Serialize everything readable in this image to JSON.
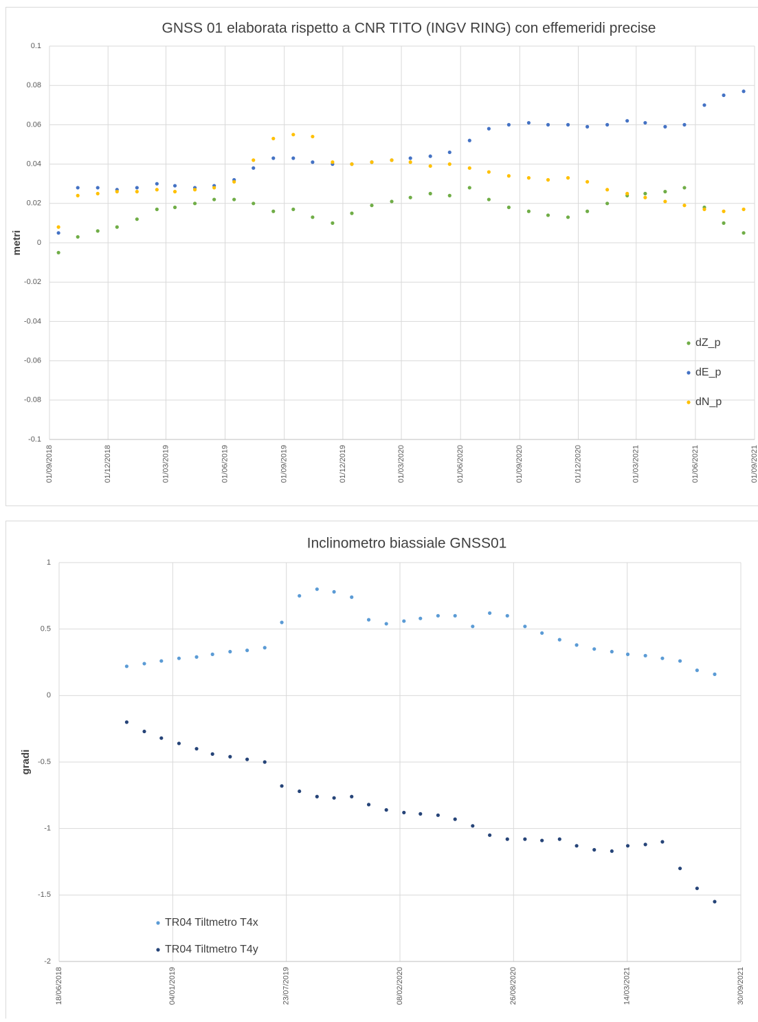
{
  "chart_data": [
    {
      "type": "scatter",
      "title": "GNSS 01 elaborata rispetto a CNR TITO (INGV RING) con effemeridi precise",
      "y_label": "metri",
      "x": [
        "2018-09-15",
        "2018-10-15",
        "2018-11-15",
        "2018-12-15",
        "2019-01-15",
        "2019-02-15",
        "2019-03-15",
        "2019-04-15",
        "2019-05-15",
        "2019-06-15",
        "2019-07-15",
        "2019-08-15",
        "2019-09-15",
        "2019-10-15",
        "2019-11-15",
        "2019-12-15",
        "2020-01-15",
        "2020-02-15",
        "2020-03-15",
        "2020-04-15",
        "2020-05-15",
        "2020-06-15",
        "2020-07-15",
        "2020-08-15",
        "2020-09-15",
        "2020-10-15",
        "2020-11-15",
        "2020-12-15",
        "2021-01-15",
        "2021-02-15",
        "2021-03-15",
        "2021-04-15",
        "2021-05-15",
        "2021-06-15",
        "2021-07-15",
        "2021-08-15"
      ],
      "series": [
        {
          "name": "dZ_p",
          "color": "#70ad47",
          "values": [
            -0.005,
            0.003,
            0.006,
            0.008,
            0.012,
            0.017,
            0.018,
            0.02,
            0.022,
            0.022,
            0.02,
            0.016,
            0.017,
            0.013,
            0.01,
            0.015,
            0.019,
            0.021,
            0.023,
            0.025,
            0.024,
            0.028,
            0.022,
            0.018,
            0.016,
            0.014,
            0.013,
            0.016,
            0.02,
            0.024,
            0.025,
            0.026,
            0.028,
            0.018,
            0.01,
            0.005
          ]
        },
        {
          "name": "dE_p",
          "color": "#4472c4",
          "values": [
            0.005,
            0.028,
            0.028,
            0.027,
            0.028,
            0.03,
            0.029,
            0.028,
            0.029,
            0.032,
            0.038,
            0.043,
            0.043,
            0.041,
            0.04,
            0.04,
            0.041,
            0.042,
            0.043,
            0.044,
            0.046,
            0.052,
            0.058,
            0.06,
            0.061,
            0.06,
            0.06,
            0.059,
            0.06,
            0.062,
            0.061,
            0.059,
            0.06,
            0.07,
            0.075,
            0.077
          ]
        },
        {
          "name": "dN_p",
          "color": "#ffc000",
          "values": [
            0.008,
            0.024,
            0.025,
            0.026,
            0.026,
            0.027,
            0.026,
            0.027,
            0.028,
            0.031,
            0.042,
            0.053,
            0.055,
            0.054,
            0.041,
            0.04,
            0.041,
            0.042,
            0.041,
            0.039,
            0.04,
            0.038,
            0.036,
            0.034,
            0.033,
            0.032,
            0.033,
            0.031,
            0.027,
            0.025,
            0.023,
            0.021,
            0.019,
            0.017,
            0.016,
            0.017
          ]
        }
      ],
      "xlim": [
        "2018-09-01",
        "2021-09-01"
      ],
      "xticks": [
        {
          "value": "2018-09-01",
          "label": "01/09/2018"
        },
        {
          "value": "2018-12-01",
          "label": "01/12/2018"
        },
        {
          "value": "2019-03-01",
          "label": "01/03/2019"
        },
        {
          "value": "2019-06-01",
          "label": "01/06/2019"
        },
        {
          "value": "2019-09-01",
          "label": "01/09/2019"
        },
        {
          "value": "2019-12-01",
          "label": "01/12/2019"
        },
        {
          "value": "2020-03-01",
          "label": "01/03/2020"
        },
        {
          "value": "2020-06-01",
          "label": "01/06/2020"
        },
        {
          "value": "2020-09-01",
          "label": "01/09/2020"
        },
        {
          "value": "2020-12-01",
          "label": "01/12/2020"
        },
        {
          "value": "2021-03-01",
          "label": "01/03/2021"
        },
        {
          "value": "2021-06-01",
          "label": "01/06/2021"
        },
        {
          "value": "2021-09-01",
          "label": "01/09/2021"
        }
      ],
      "ylim": [
        -0.1,
        0.1
      ],
      "yticks": [
        -0.1,
        -0.08,
        -0.06,
        -0.04,
        -0.02,
        0,
        0.02,
        0.04,
        0.06,
        0.08,
        0.1
      ],
      "grid": true,
      "legend": "right"
    },
    {
      "type": "scatter",
      "title": "Inclinometro biassiale GNSS01",
      "y_label": "gradi",
      "x": [
        "2018-10-15",
        "2018-11-15",
        "2018-12-15",
        "2019-01-15",
        "2019-02-15",
        "2019-03-15",
        "2019-04-15",
        "2019-05-15",
        "2019-06-15",
        "2019-07-15",
        "2019-08-15",
        "2019-09-15",
        "2019-10-15",
        "2019-11-15",
        "2019-12-15",
        "2020-01-15",
        "2020-02-15",
        "2020-03-15",
        "2020-04-15",
        "2020-05-15",
        "2020-06-15",
        "2020-07-15",
        "2020-08-15",
        "2020-09-15",
        "2020-10-15",
        "2020-11-15",
        "2020-12-15",
        "2021-01-15",
        "2021-02-15",
        "2021-03-15",
        "2021-04-15",
        "2021-05-15",
        "2021-06-15",
        "2021-07-15",
        "2021-08-15"
      ],
      "series": [
        {
          "name": "TR04 Tiltmetro T4x",
          "color": "#5b9bd5",
          "values": [
            0.22,
            0.24,
            0.26,
            0.28,
            0.29,
            0.31,
            0.33,
            0.34,
            0.36,
            0.55,
            0.75,
            0.8,
            0.78,
            0.74,
            0.57,
            0.54,
            0.56,
            0.58,
            0.6,
            0.6,
            0.52,
            0.62,
            0.6,
            0.52,
            0.47,
            0.42,
            0.38,
            0.35,
            0.33,
            0.31,
            0.3,
            0.28,
            0.26,
            0.19,
            0.16
          ]
        },
        {
          "name": "TR04 Tiltmetro T4y",
          "color": "#264478",
          "values": [
            -0.2,
            -0.27,
            -0.32,
            -0.36,
            -0.4,
            -0.44,
            -0.46,
            -0.48,
            -0.5,
            -0.68,
            -0.72,
            -0.76,
            -0.77,
            -0.76,
            -0.82,
            -0.86,
            -0.88,
            -0.89,
            -0.9,
            -0.93,
            -0.98,
            -1.05,
            -1.08,
            -1.08,
            -1.09,
            -1.08,
            -1.13,
            -1.16,
            -1.17,
            -1.13,
            -1.12,
            -1.1,
            -1.3,
            -1.45,
            -1.55
          ]
        }
      ],
      "xlim": [
        "2018-06-18",
        "2021-09-30"
      ],
      "xticks": [
        {
          "value": "2018-06-18",
          "label": "18/06/2018"
        },
        {
          "value": "2019-01-04",
          "label": "04/01/2019"
        },
        {
          "value": "2019-07-23",
          "label": "23/07/2019"
        },
        {
          "value": "2020-02-08",
          "label": "08/02/2020"
        },
        {
          "value": "2020-08-26",
          "label": "26/08/2020"
        },
        {
          "value": "2021-03-14",
          "label": "14/03/2021"
        },
        {
          "value": "2021-09-30",
          "label": "30/09/2021"
        }
      ],
      "ylim": [
        -2,
        1
      ],
      "yticks": [
        -2,
        -1.5,
        -1,
        -0.5,
        0,
        0.5,
        1
      ],
      "grid": true,
      "legend": "lower left"
    }
  ]
}
